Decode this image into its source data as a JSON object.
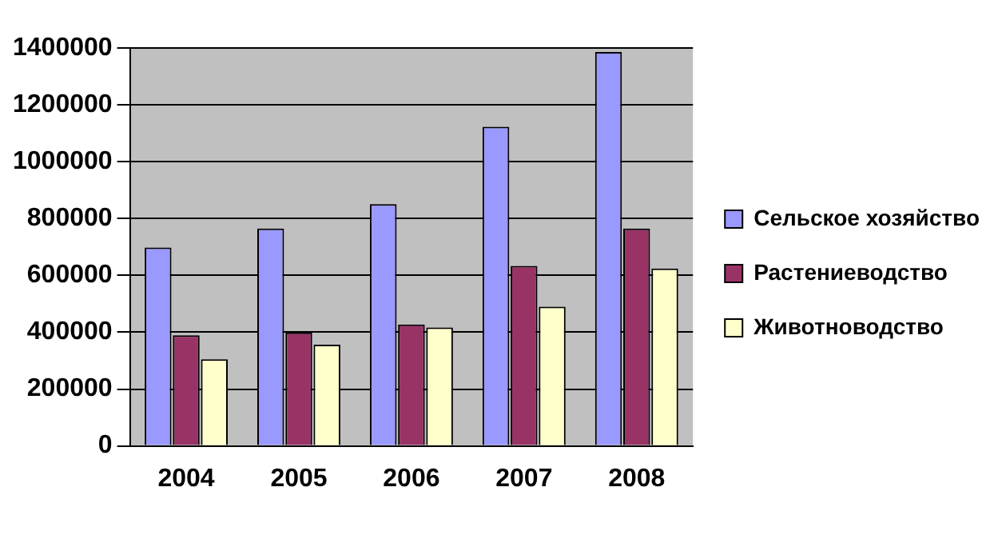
{
  "chart_data": {
    "type": "bar",
    "categories": [
      "2004",
      "2005",
      "2006",
      "2007",
      "2008"
    ],
    "series": [
      {
        "name": "Сельское хозяйство",
        "color": "#9999ff",
        "values": [
          698000,
          765000,
          851000,
          1123000,
          1386000
        ]
      },
      {
        "name": "Растениеводство",
        "color": "#993366",
        "values": [
          389000,
          399000,
          427000,
          633000,
          765000
        ]
      },
      {
        "name": "Животноводство",
        "color": "#ffffcc",
        "values": [
          305000,
          356000,
          417000,
          490000,
          624000
        ]
      }
    ],
    "ylim": [
      0,
      1400000
    ],
    "yticks": [
      0,
      200000,
      400000,
      600000,
      800000,
      1000000,
      1200000,
      1400000
    ],
    "grid": "y",
    "legend": "right"
  }
}
